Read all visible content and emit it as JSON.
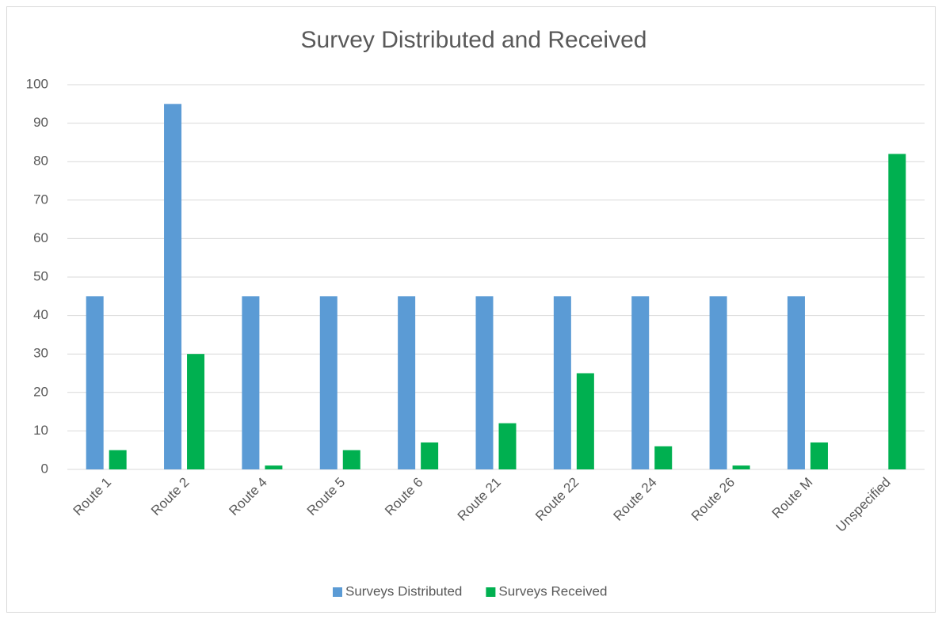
{
  "chart_data": {
    "type": "bar",
    "title": "Survey Distributed and Received",
    "categories": [
      "Route 1",
      "Route 2",
      "Route 4",
      "Route 5",
      "Route 6",
      "Route 21",
      "Route 22",
      "Route 24",
      "Route 26",
      "Route M",
      "Unspecified"
    ],
    "series": [
      {
        "name": "Surveys Distributed",
        "color": "#5b9bd5",
        "values": [
          45,
          95,
          45,
          45,
          45,
          45,
          45,
          45,
          45,
          45,
          null
        ]
      },
      {
        "name": "Surveys Received",
        "color": "#00b050",
        "values": [
          5,
          30,
          1,
          5,
          7,
          12,
          25,
          6,
          1,
          7,
          82
        ]
      }
    ],
    "ylim": [
      0,
      100
    ],
    "yticks": [
      0,
      10,
      20,
      30,
      40,
      50,
      60,
      70,
      80,
      90,
      100
    ],
    "grid": true,
    "legend": "bottom"
  }
}
